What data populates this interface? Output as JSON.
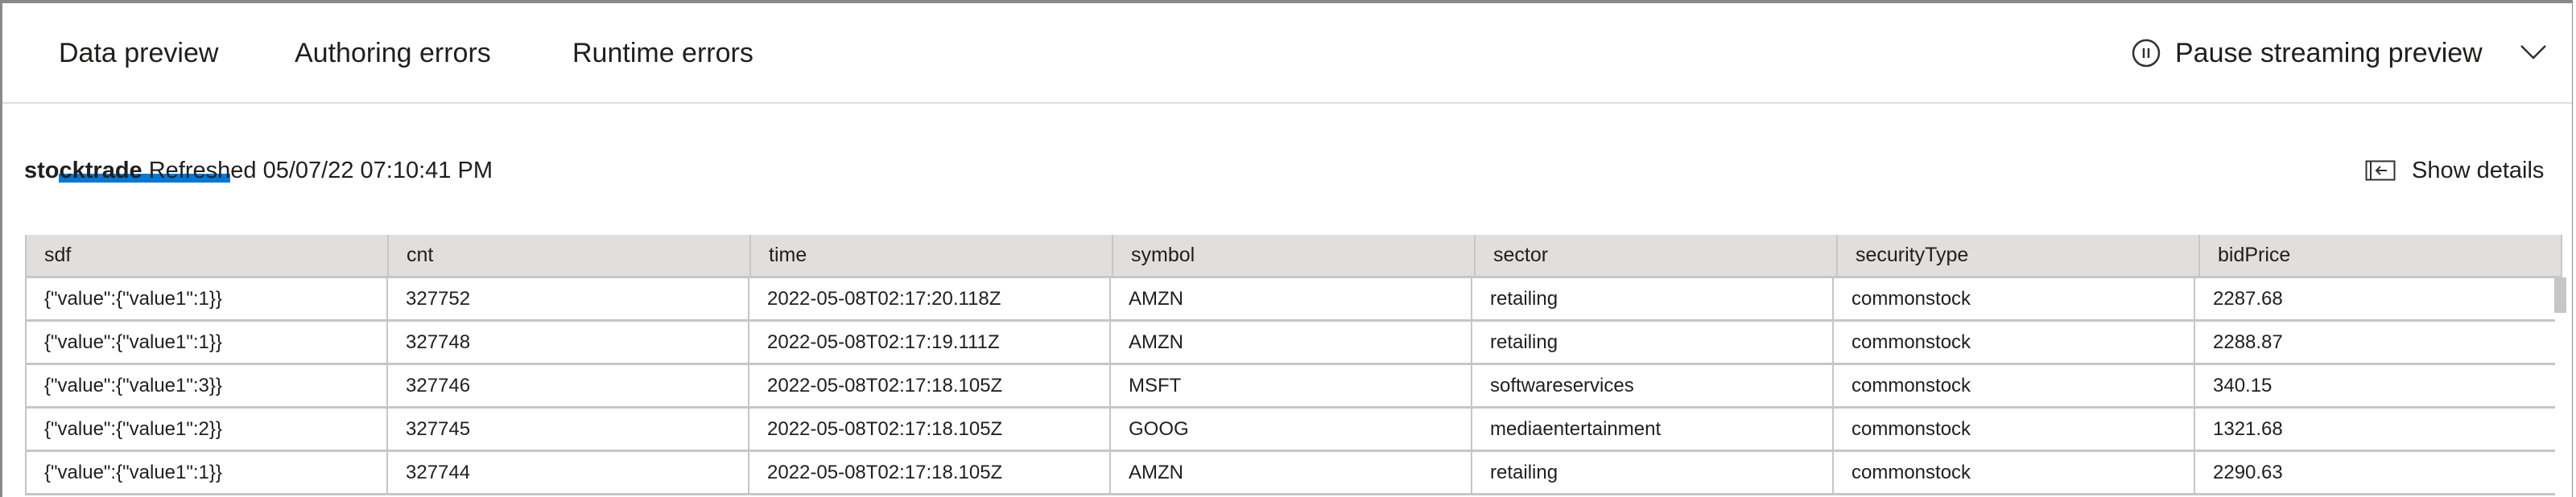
{
  "tabs": [
    {
      "label": "Data preview",
      "active": true
    },
    {
      "label": "Authoring errors"
    },
    {
      "label": "Runtime errors"
    }
  ],
  "accent": "#0078d4",
  "pause": {
    "label": "Pause streaming preview",
    "icon": "pause-circle-icon"
  },
  "collapse_icon": "chevron-down-icon",
  "header": {
    "name": "stocktrade",
    "refreshed": "Refreshed 05/07/22 07:10:41 PM"
  },
  "show_details": {
    "label": "Show details",
    "icon": "panel-expand-icon"
  },
  "table": {
    "columns": [
      "sdf",
      "cnt",
      "time",
      "symbol",
      "sector",
      "securityType",
      "bidPrice"
    ],
    "rows": [
      [
        "{\"value\":{\"value1\":1}}",
        "327752",
        "2022-05-08T02:17:20.118Z",
        "AMZN",
        "retailing",
        "commonstock",
        "2287.68"
      ],
      [
        "{\"value\":{\"value1\":1}}",
        "327748",
        "2022-05-08T02:17:19.111Z",
        "AMZN",
        "retailing",
        "commonstock",
        "2288.87"
      ],
      [
        "{\"value\":{\"value1\":3}}",
        "327746",
        "2022-05-08T02:17:18.105Z",
        "MSFT",
        "softwareservices",
        "commonstock",
        "340.15"
      ],
      [
        "{\"value\":{\"value1\":2}}",
        "327745",
        "2022-05-08T02:17:18.105Z",
        "GOOG",
        "mediaentertainment",
        "commonstock",
        "1321.68"
      ],
      [
        "{\"value\":{\"value1\":1}}",
        "327744",
        "2022-05-08T02:17:18.105Z",
        "AMZN",
        "retailing",
        "commonstock",
        "2290.63"
      ]
    ]
  }
}
